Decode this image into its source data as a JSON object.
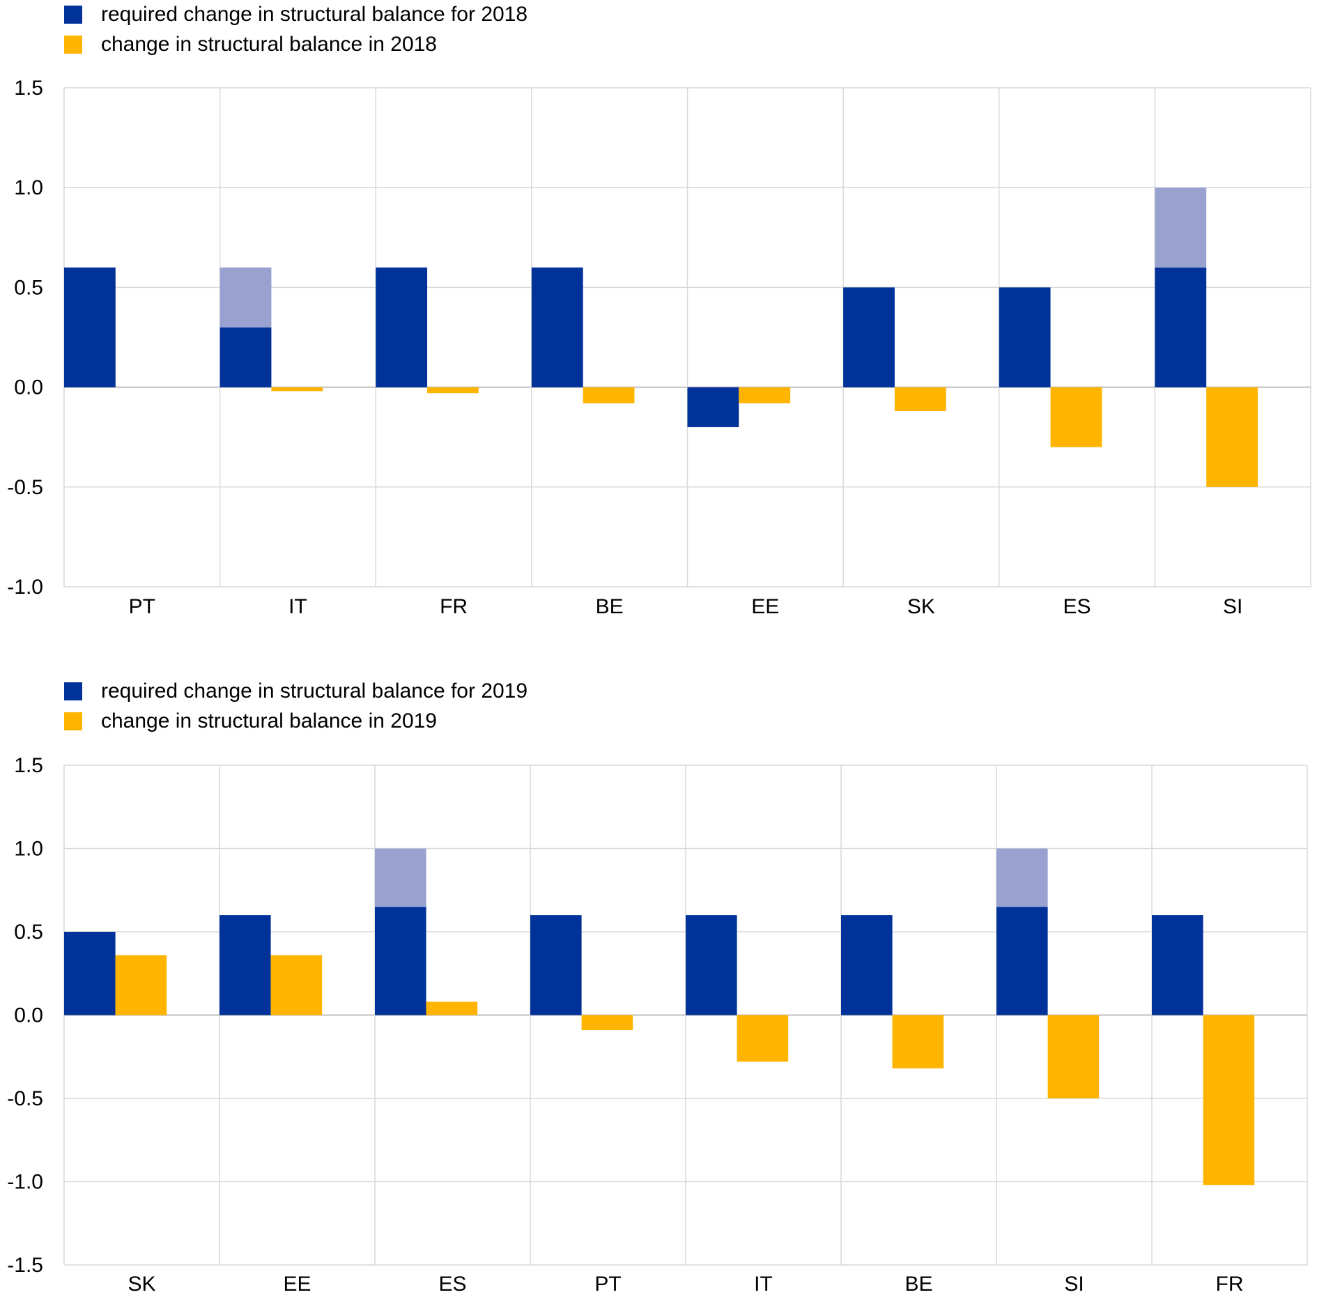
{
  "colors": {
    "required": "#003299",
    "required_extra": "#98A1D0",
    "change": "#FFB400",
    "grid": "#D9D9D9",
    "axis": "#BFBFBF"
  },
  "chart_data": [
    {
      "type": "bar",
      "categories": [
        "PT",
        "IT",
        "FR",
        "BE",
        "EE",
        "SK",
        "ES",
        "SI"
      ],
      "series": [
        {
          "name": "required change in structural balance for 2018",
          "values": [
            0.6,
            0.3,
            0.6,
            0.6,
            -0.2,
            0.5,
            0.5,
            0.6
          ]
        },
        {
          "name": "",
          "values": [
            0,
            0.3,
            0,
            0,
            0,
            0,
            0,
            0.4
          ],
          "color_key": "required_extra"
        },
        {
          "name": "change in structural balance in 2018",
          "values": [
            0.0,
            -0.02,
            -0.03,
            -0.08,
            -0.08,
            -0.12,
            -0.3,
            -0.5
          ]
        }
      ],
      "legend": [
        "required change in structural balance for 2018",
        "change in structural balance in 2018"
      ],
      "yticks": [
        "1.5",
        "1.0",
        "0.5",
        "0.0",
        "-0.5",
        "-1.0"
      ],
      "ylim": [
        -1.0,
        1.5
      ],
      "grid": true,
      "legend_position": "top-left"
    },
    {
      "type": "bar",
      "categories": [
        "SK",
        "EE",
        "ES",
        "PT",
        "IT",
        "BE",
        "SI",
        "FR"
      ],
      "series": [
        {
          "name": "required change in structural balance for 2019",
          "values": [
            0.5,
            0.6,
            0.65,
            0.6,
            0.6,
            0.6,
            0.65,
            0.6
          ]
        },
        {
          "name": "",
          "values": [
            0,
            0,
            0.35,
            0,
            0,
            0,
            0.35,
            0
          ],
          "color_key": "required_extra"
        },
        {
          "name": "change in structural balance in 2019",
          "values": [
            0.36,
            0.36,
            0.08,
            -0.09,
            -0.28,
            -0.32,
            -0.5,
            -1.02
          ]
        }
      ],
      "legend": [
        "required change in structural balance for 2019",
        "change in structural balance in 2019"
      ],
      "yticks": [
        "1.5",
        "1.0",
        "0.5",
        "0.0",
        "-0.5",
        "-1.0",
        "-1.5"
      ],
      "ylim": [
        -1.5,
        1.5
      ],
      "grid": true,
      "legend_position": "top-left"
    }
  ]
}
